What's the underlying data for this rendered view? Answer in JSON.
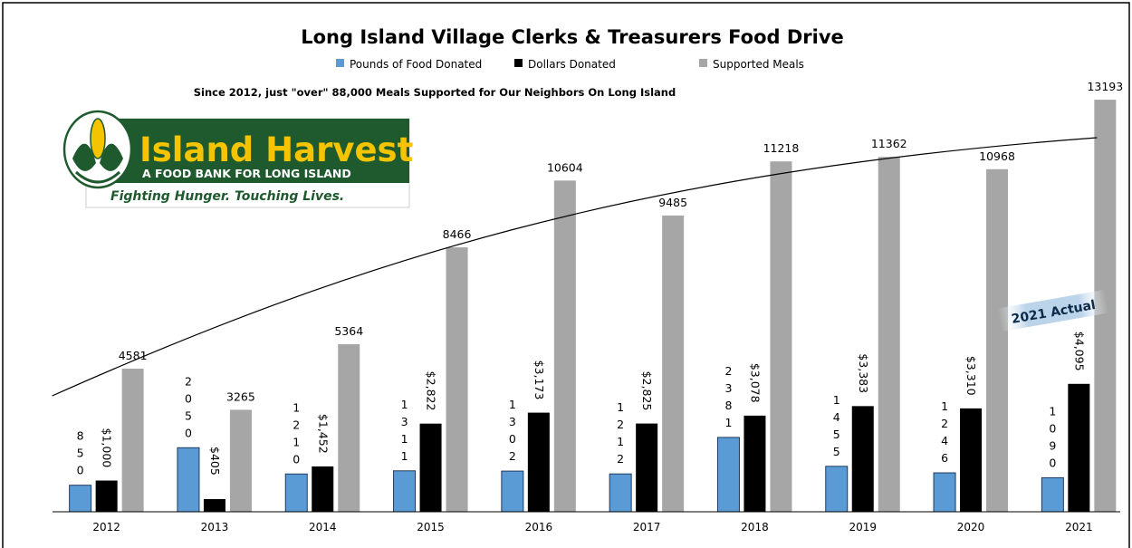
{
  "chart_data": {
    "type": "bar",
    "title": "Long Island Village Clerks & Treasurers Food Drive",
    "subtitle": "Since 2012, just \"over\"  88,000 Meals Supported for Our Neighbors On Long Island",
    "categories": [
      "2012",
      "2013",
      "2014",
      "2015",
      "2016",
      "2017",
      "2018",
      "2019",
      "2020",
      "2021"
    ],
    "series": [
      {
        "name": "Pounds of Food Donated",
        "color": "#5b9bd5",
        "values": [
          850,
          2050,
          1210,
          1311,
          1302,
          1212,
          2381,
          1455,
          1246,
          1090
        ],
        "labels": [
          "850",
          "2050",
          "1210",
          "1311",
          "1302",
          "1212",
          "2381",
          "1455",
          "1246",
          "1090"
        ]
      },
      {
        "name": "Dollars Donated",
        "color": "#000000",
        "values": [
          1000,
          405,
          1452,
          2822,
          3173,
          2825,
          3078,
          3383,
          3310,
          4095
        ],
        "labels": [
          "$1,000",
          "$405",
          "$1,452",
          "$2,822",
          "$3,173",
          "$2,825",
          "$3,078",
          "$3,383",
          "$3,310",
          "$4,095"
        ]
      },
      {
        "name": "Supported Meals",
        "color": "#a6a6a6",
        "values": [
          4581,
          3265,
          5364,
          8466,
          10604,
          9485,
          11218,
          11362,
          10968,
          13193
        ],
        "labels": [
          "4581",
          "3265",
          "5364",
          "8466",
          "10604",
          "9485",
          "11218",
          "11362",
          "10968",
          "13193"
        ]
      }
    ],
    "ylim": [
      0,
      14500
    ],
    "grid": false,
    "legend_position": "top-center",
    "trendline": true,
    "annotations": [
      "2021 Actual"
    ]
  },
  "logo": {
    "name": "Island Harvest",
    "line2": "A FOOD BANK FOR LONG ISLAND",
    "tagline": "Fighting Hunger. Touching Lives."
  }
}
